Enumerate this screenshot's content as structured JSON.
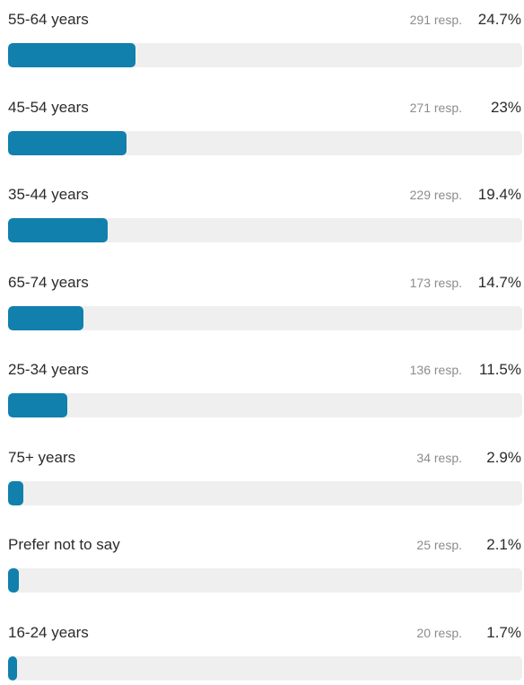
{
  "poll": {
    "bar_color": "#1180ad",
    "track_color": "#efefef",
    "options": [
      {
        "label": "55-64 years",
        "responses": "291 resp.",
        "percent_text": "24.7%",
        "percent": 24.7
      },
      {
        "label": "45-54 years",
        "responses": "271 resp.",
        "percent_text": "23%",
        "percent": 23
      },
      {
        "label": "35-44 years",
        "responses": "229 resp.",
        "percent_text": "19.4%",
        "percent": 19.4
      },
      {
        "label": "65-74 years",
        "responses": "173 resp.",
        "percent_text": "14.7%",
        "percent": 14.7
      },
      {
        "label": "25-34 years",
        "responses": "136 resp.",
        "percent_text": "11.5%",
        "percent": 11.5
      },
      {
        "label": "75+ years",
        "responses": "34 resp.",
        "percent_text": "2.9%",
        "percent": 2.9
      },
      {
        "label": "Prefer not to say",
        "responses": "25 resp.",
        "percent_text": "2.1%",
        "percent": 2.1
      },
      {
        "label": "16-24 years",
        "responses": "20 resp.",
        "percent_text": "1.7%",
        "percent": 1.7
      }
    ]
  }
}
